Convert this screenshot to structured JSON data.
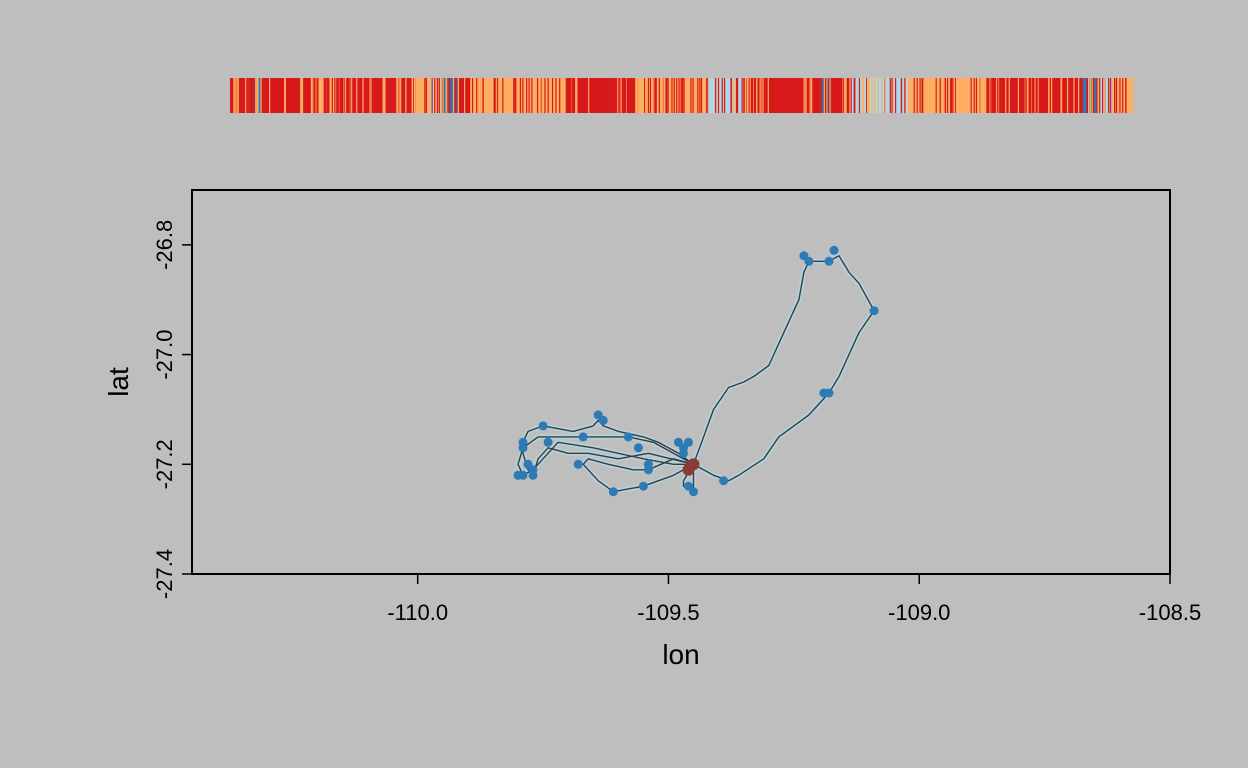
{
  "chart_data": [
    {
      "type": "heatmap",
      "description_role": "behavioural state ribbon",
      "colors": [
        "#d7191c",
        "#fdae61",
        "#abd9e9",
        "#2c7bb6"
      ],
      "segments": [
        {
          "state": 0,
          "length": 12
        },
        {
          "state": 3,
          "length": 4
        },
        {
          "state": 0,
          "length": 30
        },
        {
          "state": 1,
          "length": 10
        },
        {
          "state": 0,
          "length": 40
        },
        {
          "state": 1,
          "length": 8
        },
        {
          "state": 2,
          "length": 6
        },
        {
          "state": 3,
          "length": 8
        },
        {
          "state": 0,
          "length": 6
        },
        {
          "state": 1,
          "length": 50
        },
        {
          "state": 0,
          "length": 36
        },
        {
          "state": 1,
          "length": 38
        },
        {
          "state": 2,
          "length": 18
        },
        {
          "state": 0,
          "length": 40
        },
        {
          "state": 3,
          "length": 6
        },
        {
          "state": 0,
          "length": 10
        },
        {
          "state": 2,
          "length": 30
        },
        {
          "state": 1,
          "length": 40
        },
        {
          "state": 0,
          "length": 50
        },
        {
          "state": 3,
          "length": 8
        },
        {
          "state": 2,
          "length": 8
        },
        {
          "state": 1,
          "length": 10
        }
      ]
    },
    {
      "type": "line",
      "xlabel": "lon",
      "ylabel": "lat",
      "xlim": [
        -110.45,
        -108.5
      ],
      "ylim": [
        -27.4,
        -26.7
      ],
      "xticks": [
        -110.0,
        -109.5,
        -109.0,
        -108.5
      ],
      "xtick_labels": [
        "-110.0",
        "-109.5",
        "-109.0",
        "-108.5"
      ],
      "yticks": [
        -27.4,
        -27.2,
        -27.0,
        -26.8
      ],
      "ytick_labels": [
        "-27.4",
        "-27.2",
        "-27.0",
        "-26.8"
      ],
      "track": [
        [
          -109.45,
          -27.2
        ],
        [
          -109.43,
          -27.15
        ],
        [
          -109.41,
          -27.1
        ],
        [
          -109.38,
          -27.06
        ],
        [
          -109.35,
          -27.05
        ],
        [
          -109.33,
          -27.04
        ],
        [
          -109.3,
          -27.02
        ],
        [
          -109.28,
          -26.98
        ],
        [
          -109.26,
          -26.94
        ],
        [
          -109.24,
          -26.9
        ],
        [
          -109.23,
          -26.85
        ],
        [
          -109.22,
          -26.83
        ],
        [
          -109.18,
          -26.83
        ],
        [
          -109.16,
          -26.82
        ],
        [
          -109.14,
          -26.85
        ],
        [
          -109.12,
          -26.87
        ],
        [
          -109.09,
          -26.92
        ],
        [
          -109.12,
          -26.96
        ],
        [
          -109.14,
          -27.0
        ],
        [
          -109.16,
          -27.04
        ],
        [
          -109.18,
          -27.07
        ],
        [
          -109.22,
          -27.11
        ],
        [
          -109.28,
          -27.15
        ],
        [
          -109.31,
          -27.19
        ],
        [
          -109.36,
          -27.22
        ],
        [
          -109.38,
          -27.23
        ],
        [
          -109.41,
          -27.22
        ],
        [
          -109.45,
          -27.2
        ],
        [
          -109.48,
          -27.18
        ],
        [
          -109.52,
          -27.16
        ],
        [
          -109.55,
          -27.15
        ],
        [
          -109.6,
          -27.14
        ],
        [
          -109.63,
          -27.13
        ],
        [
          -109.64,
          -27.12
        ],
        [
          -109.65,
          -27.13
        ],
        [
          -109.69,
          -27.14
        ],
        [
          -109.75,
          -27.13
        ],
        [
          -109.78,
          -27.14
        ],
        [
          -109.79,
          -27.16
        ],
        [
          -109.79,
          -27.18
        ],
        [
          -109.78,
          -27.21
        ],
        [
          -109.77,
          -27.22
        ],
        [
          -109.76,
          -27.19
        ],
        [
          -109.74,
          -27.17
        ],
        [
          -109.7,
          -27.18
        ],
        [
          -109.66,
          -27.18
        ],
        [
          -109.6,
          -27.19
        ],
        [
          -109.54,
          -27.18
        ],
        [
          -109.45,
          -27.2
        ],
        [
          -109.47,
          -27.23
        ],
        [
          -109.47,
          -27.24
        ],
        [
          -109.45,
          -27.25
        ],
        [
          -109.45,
          -27.2
        ],
        [
          -109.49,
          -27.19
        ],
        [
          -109.54,
          -27.21
        ],
        [
          -109.57,
          -27.21
        ],
        [
          -109.62,
          -27.2
        ],
        [
          -109.66,
          -27.19
        ],
        [
          -109.67,
          -27.2
        ],
        [
          -109.64,
          -27.23
        ],
        [
          -109.61,
          -27.25
        ],
        [
          -109.55,
          -27.24
        ],
        [
          -109.49,
          -27.22
        ],
        [
          -109.45,
          -27.2
        ],
        [
          -109.53,
          -27.16
        ],
        [
          -109.58,
          -27.15
        ],
        [
          -109.66,
          -27.15
        ],
        [
          -109.68,
          -27.15
        ],
        [
          -109.72,
          -27.15
        ],
        [
          -109.76,
          -27.15
        ],
        [
          -109.79,
          -27.17
        ],
        [
          -109.8,
          -27.2
        ],
        [
          -109.79,
          -27.22
        ],
        [
          -109.77,
          -27.21
        ],
        [
          -109.72,
          -27.16
        ],
        [
          -109.65,
          -27.17
        ],
        [
          -109.55,
          -27.19
        ],
        [
          -109.49,
          -27.2
        ],
        [
          -109.45,
          -27.2
        ]
      ],
      "fixes": [
        [
          -109.45,
          -27.2
        ],
        [
          -109.23,
          -26.82
        ],
        [
          -109.22,
          -26.83
        ],
        [
          -109.17,
          -26.81
        ],
        [
          -109.18,
          -26.83
        ],
        [
          -109.09,
          -26.92
        ],
        [
          -109.18,
          -27.07
        ],
        [
          -109.19,
          -27.07
        ],
        [
          -109.39,
          -27.23
        ],
        [
          -109.46,
          -27.24
        ],
        [
          -109.45,
          -27.25
        ],
        [
          -109.47,
          -27.17
        ],
        [
          -109.46,
          -27.16
        ],
        [
          -109.48,
          -27.16
        ],
        [
          -109.47,
          -27.18
        ],
        [
          -109.54,
          -27.21
        ],
        [
          -109.54,
          -27.2
        ],
        [
          -109.55,
          -27.24
        ],
        [
          -109.61,
          -27.25
        ],
        [
          -109.56,
          -27.17
        ],
        [
          -109.58,
          -27.15
        ],
        [
          -109.64,
          -27.11
        ],
        [
          -109.63,
          -27.12
        ],
        [
          -109.67,
          -27.15
        ],
        [
          -109.68,
          -27.2
        ],
        [
          -109.75,
          -27.13
        ],
        [
          -109.79,
          -27.16
        ],
        [
          -109.79,
          -27.17
        ],
        [
          -109.8,
          -27.22
        ],
        [
          -109.79,
          -27.22
        ],
        [
          -109.77,
          -27.21
        ],
        [
          -109.77,
          -27.22
        ],
        [
          -109.78,
          -27.2
        ],
        [
          -109.74,
          -27.16
        ],
        [
          -109.46,
          -27.21
        ]
      ],
      "colors": {
        "track_line": "#3c3c3c",
        "track_halo": "#abd9e9",
        "fix_point": "#2c7bb6",
        "center_point": "#8b3a3a"
      },
      "grid": false
    }
  ]
}
